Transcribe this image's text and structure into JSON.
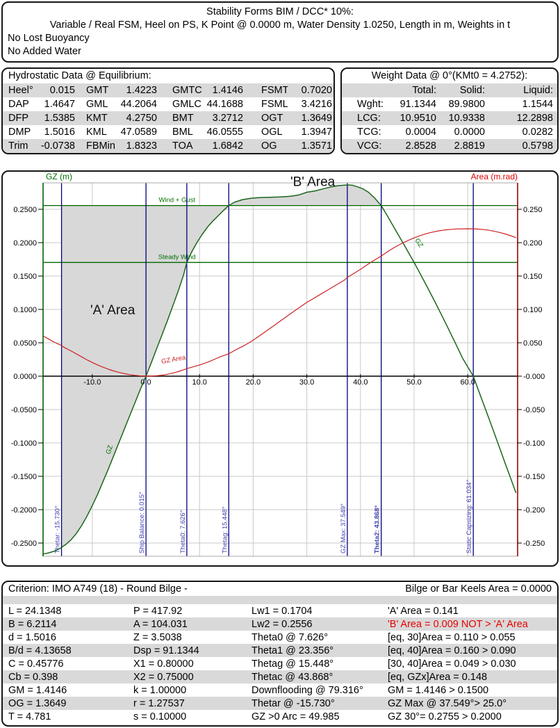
{
  "header": {
    "title": "Stability Forms BIM / DCC* 10%:",
    "subtitle": "Variable / Real FSM, Heel on PS, K Point @ 0.0000 m, Water Density 1.0250, Length in m, Weights in t",
    "line3": "No Lost Buoyancy",
    "line4": "No Added Water"
  },
  "hydrostatic": {
    "title": "Hydrostatic Data @ Equilibrium:",
    "rows": [
      [
        "Heel°",
        "0.015",
        "GMT",
        "1.4223",
        "GMTC",
        "1.4146",
        "FSMT",
        "0.7020"
      ],
      [
        "DAP",
        "1.4647",
        "GML",
        "44.2064",
        "GMLC",
        "44.1688",
        "FSML",
        "3.4216"
      ],
      [
        "DFP",
        "1.5385",
        "KMT",
        "4.2750",
        "BMT",
        "3.2712",
        "OGT",
        "1.3649"
      ],
      [
        "DMP",
        "1.5016",
        "KML",
        "47.0589",
        "BML",
        "46.0555",
        "OGL",
        "1.3947"
      ],
      [
        "Trim",
        "-0.0738",
        "FBMin",
        "1.8323",
        "TOA",
        "1.6842",
        "OG",
        "1.3571"
      ]
    ]
  },
  "weight": {
    "title": "Weight Data @ 0°(KMt0 = 4.2752):",
    "columns": [
      "",
      "Total:",
      "Solid:",
      "Liquid:"
    ],
    "rows": [
      [
        "Wght:",
        "91.1344",
        "89.9800",
        "1.1544"
      ],
      [
        "LCG:",
        "10.9510",
        "10.9338",
        "12.2898"
      ],
      [
        "TCG:",
        "0.0004",
        "0.0000",
        "0.0282"
      ],
      [
        "VCG:",
        "2.8528",
        "2.8819",
        "0.5798"
      ]
    ]
  },
  "criterion": {
    "title_left": "Criterion: IMO A749 (18) - Round Bilge -",
    "title_right": "Bilge or Bar Keels Area = 0.0000",
    "rows": [
      [
        "L = 24.1348",
        "P = 417.92",
        "Lw1 = 0.1704",
        "'A' Area = 0.141"
      ],
      [
        "B = 6.2114",
        "A = 104.031",
        "Lw2 = 0.2556",
        "'B' Area = 0.009 NOT > 'A' Area"
      ],
      [
        "d = 1.5016",
        "Z = 3.5038",
        "Theta0 @ 7.626°",
        "[eq, 30]Area = 0.110 > 0.055"
      ],
      [
        "B/d = 4.13658",
        "Dsp = 91.1344",
        "Theta1 @ 23.356°",
        "[eq, 40]Area = 0.160 > 0.090"
      ],
      [
        "C = 0.45776",
        "X1 = 0.80000",
        "Thetag @ 15.448°",
        "[30, 40]Area = 0.049 > 0.030"
      ],
      [
        "Cb = 0.398",
        "X2 = 0.75000",
        "Thetac @ 43.868°",
        "[eq, GZx]Area = 0.148"
      ],
      [
        "GM = 1.4146",
        "k = 1.00000",
        "Downflooding @ 79.316°",
        "GM = 1.4146 > 0.1500"
      ],
      [
        "OG = 1.3649",
        "r = 1.27537",
        "Thetar @ -15.730°",
        "GZ Max @ 37.549°> 25.0°"
      ],
      [
        "T = 4.781",
        "s = 0.10000",
        "GZ >0 Arc = 49.985",
        "GZ 30°= 0.2755 > 0.2000"
      ]
    ],
    "alert_cell": {
      "row": 1,
      "col": 3
    }
  },
  "chart_data": {
    "type": "line",
    "title": "GZ and dynamic stability curves vs heel angle (deg)",
    "axis_titles": {
      "left": "GZ (m)",
      "right": "Area (m.rad)"
    },
    "xlim": [
      -19.17,
      69.3
    ],
    "ylim": [
      -0.2698,
      0.2896
    ],
    "grid": true,
    "colors": {
      "grid": "#c9c9c9",
      "plot_border": "#a8a8a8",
      "x_axis": "#000000",
      "left_axis": "#006400",
      "right_axis": "#9a0000",
      "gz_curve": "#1a661a",
      "area_curve": "#cc2222",
      "wind_lines": "#006400",
      "theta_lines": "#000080",
      "theta_labels": "#4040b0",
      "green_text": "#007000",
      "red_text": "#e00000",
      "area_fill": "#d8d8d8"
    },
    "x_ticks": [
      {
        "label": "-10.0",
        "v": -10
      },
      {
        "label": "0.0",
        "v": 0
      },
      {
        "label": "10.0",
        "v": 10
      },
      {
        "label": "20.0",
        "v": 20
      },
      {
        "label": "30.0",
        "v": 30
      },
      {
        "label": "40.0",
        "v": 40
      },
      {
        "label": "50.0",
        "v": 50
      },
      {
        "label": "60.0",
        "v": 60
      }
    ],
    "left_ticks": [
      {
        "label": "0.2500",
        "v": 0.25
      },
      {
        "label": "0.2000",
        "v": 0.2
      },
      {
        "label": "0.1500",
        "v": 0.15
      },
      {
        "label": "0.1000",
        "v": 0.1
      },
      {
        "label": "0.0500",
        "v": 0.05
      },
      {
        "label": "0.0000",
        "v": 0.0
      },
      {
        "label": "-0.0500",
        "v": -0.05
      },
      {
        "label": "-0.1000",
        "v": -0.1
      },
      {
        "label": "-0.1500",
        "v": -0.15
      },
      {
        "label": "-0.2000",
        "v": -0.2
      },
      {
        "label": "-0.2500",
        "v": -0.25
      }
    ],
    "right_ticks": [
      {
        "label": "0.250",
        "v": 0.25
      },
      {
        "label": "0.200",
        "v": 0.2
      },
      {
        "label": "0.150",
        "v": 0.15
      },
      {
        "label": "0.100",
        "v": 0.1
      },
      {
        "label": "0.050",
        "v": 0.05
      },
      {
        "label": "-0.000",
        "v": 0.0
      },
      {
        "label": "-0.050",
        "v": -0.05
      },
      {
        "label": "-0.100",
        "v": -0.1
      },
      {
        "label": "-0.150",
        "v": -0.15
      },
      {
        "label": "-0.200",
        "v": -0.2
      },
      {
        "label": "-0.250",
        "v": -0.25
      }
    ],
    "h_lines": [
      {
        "label": "Wind + Gust",
        "value": 0.2556,
        "label_deg": 5.8
      },
      {
        "label": "Steady Wind",
        "value": 0.1704,
        "label_deg": 5.8
      }
    ],
    "v_lines": [
      {
        "label": "Thetar: -15.730°",
        "deg": -15.73,
        "bold": false
      },
      {
        "label": "Ship Balance: 0.015°",
        "deg": 0.015,
        "bold": false
      },
      {
        "label": "Theta0: 7.626°",
        "deg": 7.626,
        "bold": false
      },
      {
        "label": "Thetag: 15.448°",
        "deg": 15.448,
        "bold": false
      },
      {
        "label": "GZ Max: 37.549°",
        "deg": 37.549,
        "bold": false
      },
      {
        "label": "Theta2: 43.868°",
        "deg": 43.868,
        "bold": true
      },
      {
        "label": "Static Capsizing: 61.034°",
        "deg": 61.034,
        "bold": false
      }
    ],
    "areas": {
      "a": {
        "label": "'A' Area",
        "range": [
          -15.73,
          15.448
        ],
        "label_deg": -6.2,
        "label_val": 0.1
      },
      "b": {
        "label": "'B' Area",
        "range": [
          15.448,
          43.868
        ],
        "label_deg": 31.1,
        "label_val": 0.292
      }
    },
    "curve_labels": [
      {
        "text": "GZ",
        "deg": -6.45,
        "val": -0.111,
        "rot": -73,
        "color": "#007000"
      },
      {
        "text": "GZ",
        "deg": 50.6,
        "val": 0.198,
        "rot": 57,
        "color": "#007000"
      },
      {
        "text": "GZ Area",
        "deg": 5.2,
        "val": 0.022,
        "rot": -10,
        "color": "#cc2222"
      }
    ],
    "series": [
      {
        "name": "GZ",
        "points": [
          [
            -19.1,
            -0.2665
          ],
          [
            -18,
            -0.2645
          ],
          [
            -17,
            -0.262
          ],
          [
            -16,
            -0.258
          ],
          [
            -15.73,
            -0.2565
          ],
          [
            -15,
            -0.2525
          ],
          [
            -14,
            -0.2455
          ],
          [
            -13,
            -0.236
          ],
          [
            -12,
            -0.224
          ],
          [
            -11,
            -0.21
          ],
          [
            -10,
            -0.194
          ],
          [
            -9,
            -0.177
          ],
          [
            -8,
            -0.158
          ],
          [
            -7,
            -0.139
          ],
          [
            -6,
            -0.119
          ],
          [
            -5,
            -0.099
          ],
          [
            -4,
            -0.079
          ],
          [
            -3,
            -0.059
          ],
          [
            -2,
            -0.039
          ],
          [
            -1,
            -0.019
          ],
          [
            0.015,
            0
          ],
          [
            1,
            0.02
          ],
          [
            2,
            0.041
          ],
          [
            3,
            0.062
          ],
          [
            4,
            0.083
          ],
          [
            5,
            0.105
          ],
          [
            6,
            0.127
          ],
          [
            7,
            0.151
          ],
          [
            7.626,
            0.1704
          ],
          [
            8.5,
            0.1855
          ],
          [
            9.5,
            0.2
          ],
          [
            10.5,
            0.2125
          ],
          [
            11.5,
            0.2235
          ],
          [
            12.5,
            0.2325
          ],
          [
            13.5,
            0.2405
          ],
          [
            14.5,
            0.2485
          ],
          [
            15.448,
            0.2556
          ],
          [
            16.5,
            0.2605
          ],
          [
            18,
            0.2645
          ],
          [
            19.5,
            0.2665
          ],
          [
            21,
            0.2675
          ],
          [
            23,
            0.268
          ],
          [
            25,
            0.2685
          ],
          [
            27,
            0.2695
          ],
          [
            28.5,
            0.2715
          ],
          [
            30,
            0.2755
          ],
          [
            31.5,
            0.2775
          ],
          [
            33,
            0.2805
          ],
          [
            34.5,
            0.2835
          ],
          [
            36,
            0.2855
          ],
          [
            37.549,
            0.2865
          ],
          [
            38.5,
            0.286
          ],
          [
            39.5,
            0.2835
          ],
          [
            40.5,
            0.2805
          ],
          [
            41.5,
            0.2755
          ],
          [
            42.7,
            0.2665
          ],
          [
            43.868,
            0.2556
          ],
          [
            45,
            0.2405
          ],
          [
            46,
            0.2265
          ],
          [
            47,
            0.2125
          ],
          [
            48,
            0.1985
          ],
          [
            49,
            0.1845
          ],
          [
            50,
            0.1704
          ],
          [
            51,
            0.1555
          ],
          [
            52,
            0.1405
          ],
          [
            53,
            0.125
          ],
          [
            54,
            0.1095
          ],
          [
            55,
            0.0935
          ],
          [
            56,
            0.0775
          ],
          [
            57,
            0.061
          ],
          [
            58,
            0.0445
          ],
          [
            59,
            0.0275
          ],
          [
            60,
            0.014
          ],
          [
            61.034,
            0
          ],
          [
            62,
            -0.021
          ],
          [
            63,
            -0.043
          ],
          [
            64,
            -0.0645
          ],
          [
            65,
            -0.0865
          ],
          [
            66,
            -0.1085
          ],
          [
            67,
            -0.131
          ],
          [
            68,
            -0.153
          ],
          [
            69,
            -0.175
          ]
        ]
      },
      {
        "name": "GZ Area",
        "points": [
          [
            -19.1,
            0.06
          ],
          [
            -18,
            0.055
          ],
          [
            -17,
            0.0505
          ],
          [
            -16,
            0.047
          ],
          [
            -15.73,
            0.0455
          ],
          [
            -15,
            0.042
          ],
          [
            -14,
            0.038
          ],
          [
            -13,
            0.0335
          ],
          [
            -12,
            0.029
          ],
          [
            -11,
            0.0245
          ],
          [
            -10,
            0.0205
          ],
          [
            -9,
            0.0168
          ],
          [
            -8,
            0.0134
          ],
          [
            -7,
            0.0104
          ],
          [
            -6,
            0.0078
          ],
          [
            -5,
            0.0056
          ],
          [
            -4,
            0.0038
          ],
          [
            -3,
            0.0023
          ],
          [
            -2,
            0.0012
          ],
          [
            -1,
            0.0004
          ],
          [
            0,
            0.0001
          ],
          [
            1,
            0.0001
          ],
          [
            2,
            0.0006
          ],
          [
            3,
            0.0015
          ],
          [
            4,
            0.0028
          ],
          [
            5,
            0.0046
          ],
          [
            6,
            0.0068
          ],
          [
            7,
            0.0095
          ],
          [
            7.626,
            0.0112
          ],
          [
            9,
            0.0145
          ],
          [
            10,
            0.0168
          ],
          [
            11,
            0.0195
          ],
          [
            12,
            0.0225
          ],
          [
            13,
            0.026
          ],
          [
            14,
            0.0295
          ],
          [
            15.448,
            0.0335
          ],
          [
            17,
            0.0405
          ],
          [
            18,
            0.0445
          ],
          [
            19,
            0.049
          ],
          [
            20,
            0.054
          ],
          [
            21,
            0.0595
          ],
          [
            22,
            0.065
          ],
          [
            23,
            0.0708
          ],
          [
            24,
            0.0765
          ],
          [
            25,
            0.0823
          ],
          [
            26,
            0.088
          ],
          [
            27,
            0.0938
          ],
          [
            28,
            0.0995
          ],
          [
            29,
            0.105
          ],
          [
            30,
            0.1105
          ],
          [
            31,
            0.1152
          ],
          [
            32,
            0.12
          ],
          [
            33,
            0.1248
          ],
          [
            34,
            0.1296
          ],
          [
            35,
            0.1344
          ],
          [
            36,
            0.1392
          ],
          [
            37,
            0.1438
          ],
          [
            37.549,
            0.148
          ],
          [
            38.5,
            0.1525
          ],
          [
            40,
            0.16
          ],
          [
            41,
            0.1655
          ],
          [
            42,
            0.1708
          ],
          [
            43,
            0.1758
          ],
          [
            43.868,
            0.18
          ],
          [
            45,
            0.1862
          ],
          [
            46,
            0.1912
          ],
          [
            47,
            0.1958
          ],
          [
            48,
            0.2
          ],
          [
            49,
            0.2038
          ],
          [
            50,
            0.2072
          ],
          [
            51,
            0.2102
          ],
          [
            52,
            0.2128
          ],
          [
            53,
            0.215
          ],
          [
            54,
            0.2168
          ],
          [
            55,
            0.2182
          ],
          [
            56,
            0.2193
          ],
          [
            57,
            0.22
          ],
          [
            58,
            0.2205
          ],
          [
            59,
            0.2207
          ],
          [
            60,
            0.2208
          ],
          [
            61,
            0.2207
          ],
          [
            62,
            0.2203
          ],
          [
            63,
            0.2196
          ],
          [
            64,
            0.2185
          ],
          [
            65,
            0.217
          ],
          [
            66,
            0.2152
          ],
          [
            67,
            0.213
          ],
          [
            68,
            0.2104
          ],
          [
            69,
            0.2075
          ]
        ]
      }
    ]
  }
}
